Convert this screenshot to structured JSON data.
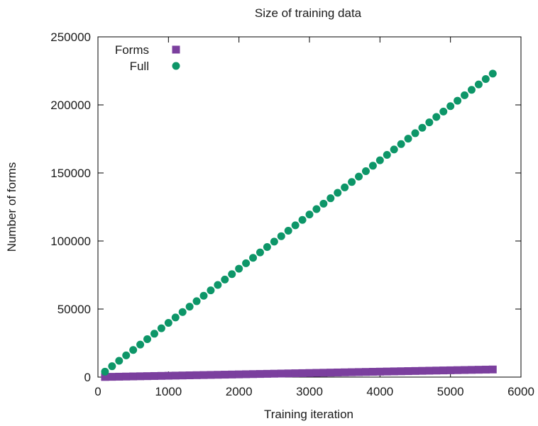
{
  "chart_data": {
    "type": "scatter",
    "title": "Size of training data",
    "xlabel": "Training iteration",
    "ylabel": "Number of forms",
    "xlim": [
      0,
      6000
    ],
    "ylim": [
      0,
      250000
    ],
    "xticks": [
      "0",
      "1000",
      "2000",
      "3000",
      "4000",
      "5000",
      "6000"
    ],
    "yticks": [
      "0",
      "50000",
      "100000",
      "150000",
      "200000",
      "250000"
    ],
    "grid": false,
    "legend_position": "top-left",
    "series": [
      {
        "name": "Forms",
        "marker": "square",
        "color": "#7b3f9e",
        "x_start": 100,
        "x_end": 5600,
        "x_step": 100,
        "y_start": 100,
        "y_end": 5600
      },
      {
        "name": "Full",
        "marker": "circle",
        "color": "#0d9668",
        "x_start": 100,
        "x_end": 5600,
        "x_step": 100,
        "y_start": 4000,
        "y_end": 223000
      }
    ]
  }
}
